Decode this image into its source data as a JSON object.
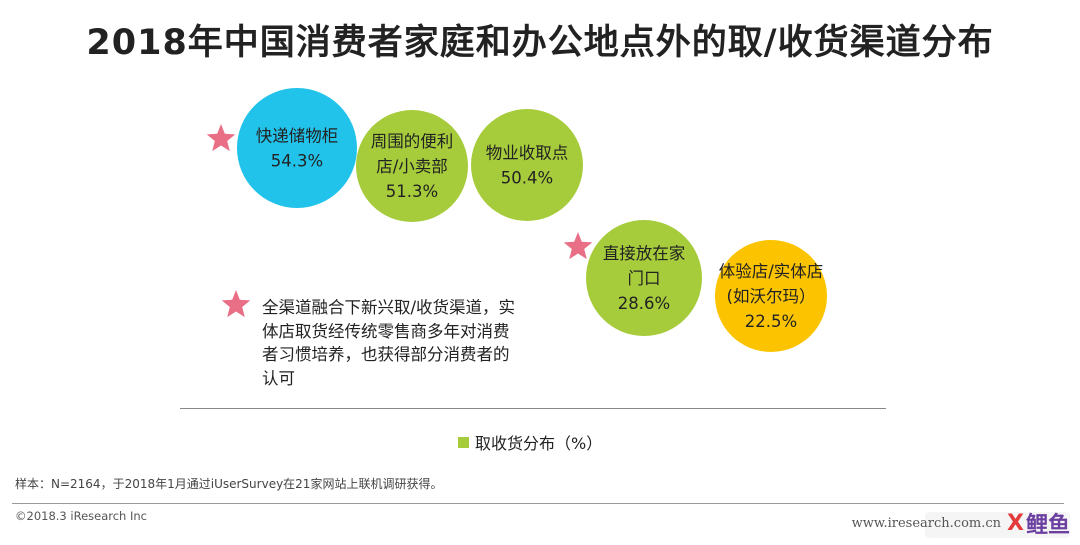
{
  "title": "2018年中国消费者家庭和办公地点外的取/收货渠道分布",
  "chart_data": {
    "type": "bubble",
    "unit": "%",
    "series": [
      {
        "name": "取收货分布（%）",
        "points": [
          {
            "label_lines": [
              "快递储物柜"
            ],
            "value": 54.3,
            "value_text": "54.3%",
            "color": "#22c3ea",
            "starred": true
          },
          {
            "label_lines": [
              "周围的便利",
              "店/小卖部"
            ],
            "value": 51.3,
            "value_text": "51.3%",
            "color": "#a6cc3c",
            "starred": false
          },
          {
            "label_lines": [
              "物业收取点"
            ],
            "value": 50.4,
            "value_text": "50.4%",
            "color": "#a6cc3c",
            "starred": false
          },
          {
            "label_lines": [
              "直接放在家",
              "门口"
            ],
            "value": 28.6,
            "value_text": "28.6%",
            "color": "#a6cc3c",
            "starred": true
          },
          {
            "label_lines": [
              "体验店/实体店",
              "(如沃尔玛）"
            ],
            "value": 22.5,
            "value_text": "22.5%",
            "color": "#fcc400",
            "starred": false
          }
        ]
      }
    ],
    "legend": {
      "label": "取收货分布（%）",
      "color": "#a6cc3c",
      "placement": "bottom"
    },
    "star_color": "#e86f86"
  },
  "note": {
    "text": "全渠道融合下新兴取/收货渠道，实体店取货经传统零售商多年对消费者习惯培养，也获得部分消费者的认可"
  },
  "source": "样本：N=2164，于2018年1月通过iUserSurvey在21家网站上联机调研获得。",
  "copyright": "©2018.3 iResearch Inc",
  "watermark": {
    "text": "www.iresearch.com.cn",
    "overlay_x": "X",
    "overlay_cn": "鲤鱼"
  }
}
